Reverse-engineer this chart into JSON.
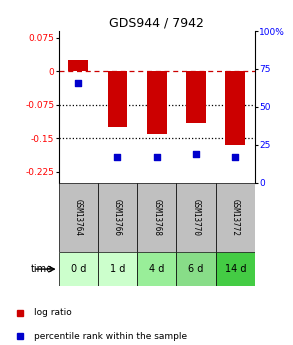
{
  "title": "GDS944 / 7942",
  "samples": [
    "GSM13764",
    "GSM13766",
    "GSM13768",
    "GSM13770",
    "GSM13772"
  ],
  "time_labels": [
    "0 d",
    "1 d",
    "4 d",
    "6 d",
    "14 d"
  ],
  "log_ratios": [
    0.025,
    -0.125,
    -0.14,
    -0.115,
    -0.165
  ],
  "percentile_ranks": [
    66,
    17,
    17,
    19,
    17
  ],
  "ylim_left": [
    -0.25,
    0.09
  ],
  "ylim_right": [
    0,
    100
  ],
  "left_ticks": [
    0.075,
    0,
    -0.075,
    -0.15,
    -0.225
  ],
  "right_ticks": [
    100,
    75,
    50,
    25,
    0
  ],
  "hline_dashed": 0,
  "hlines_dotted": [
    -0.075,
    -0.15
  ],
  "bar_color": "#cc0000",
  "dot_color": "#0000cc",
  "bar_width": 0.5,
  "cell_colors_gsm": [
    "#c0c0c0",
    "#c0c0c0",
    "#c0c0c0",
    "#c0c0c0",
    "#c0c0c0"
  ],
  "cell_colors_time": [
    "#ccffcc",
    "#ccffcc",
    "#99ee99",
    "#88dd88",
    "#44cc44"
  ],
  "legend_bar_color": "#cc0000",
  "legend_dot_color": "#0000cc",
  "title_fontsize": 9
}
